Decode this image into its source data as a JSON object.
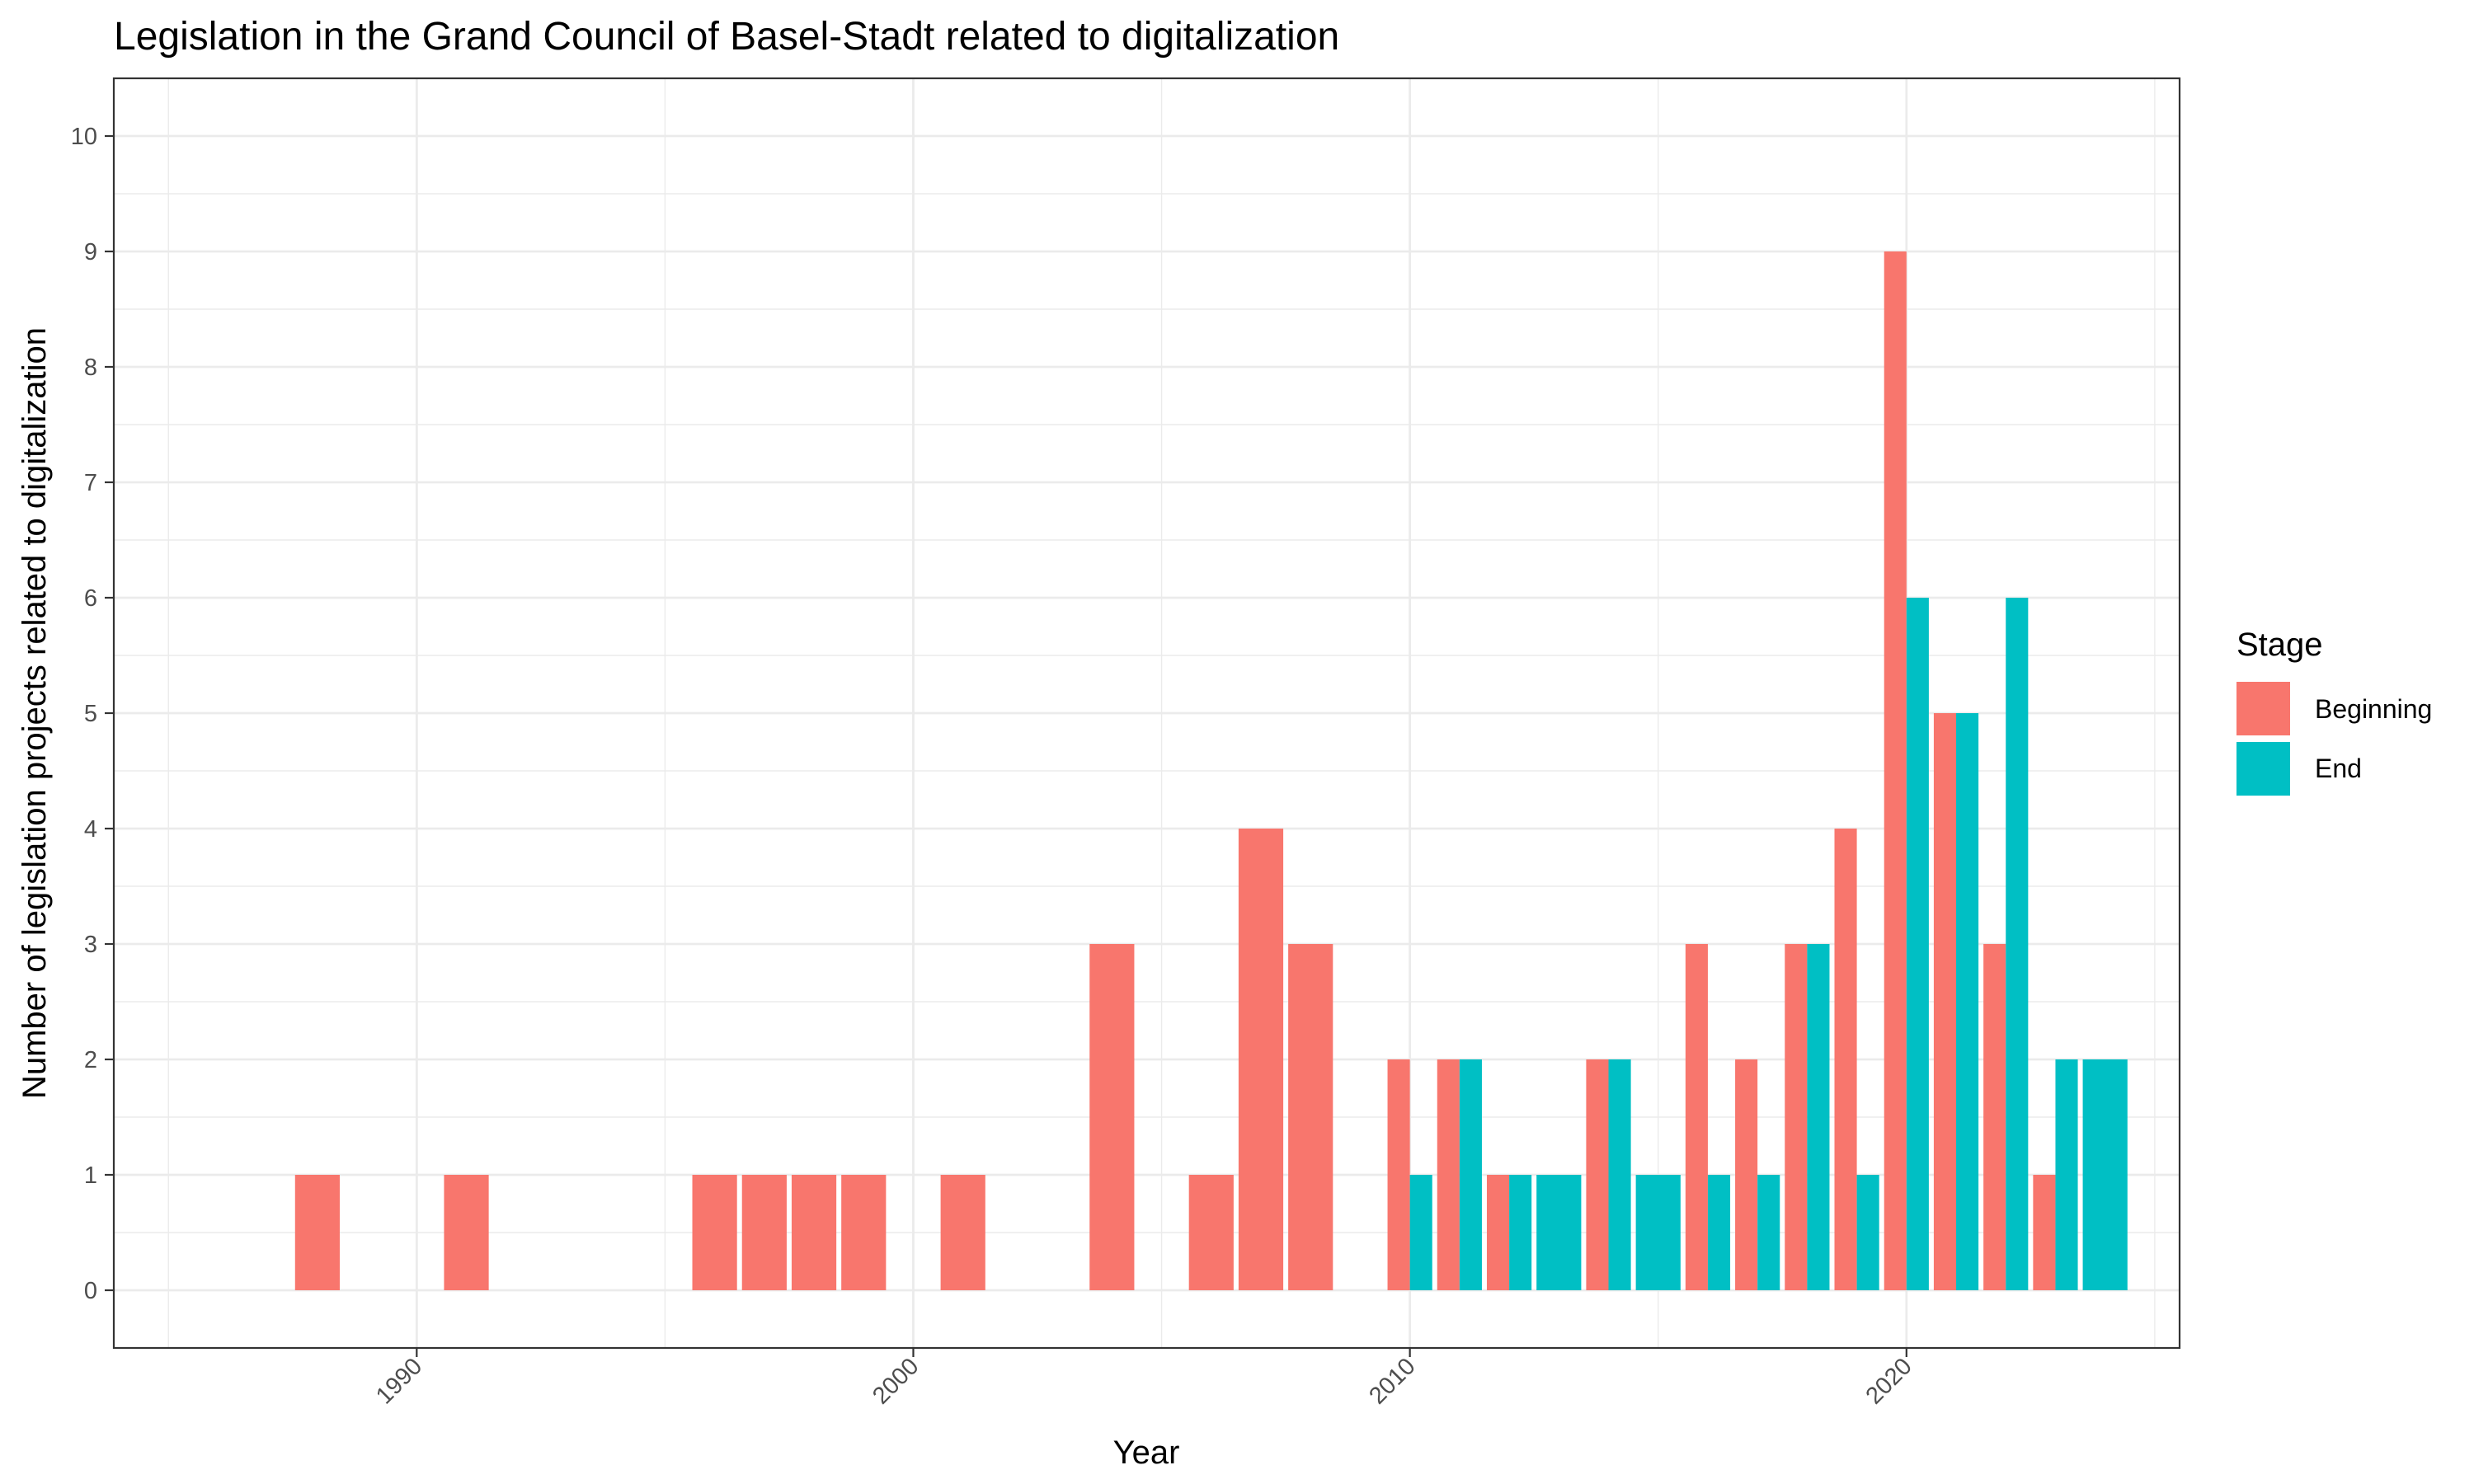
{
  "chart_data": {
    "type": "bar",
    "title": "Legislation in the Grand Council of Basel-Stadt related to digitalization",
    "xlabel": "Year",
    "ylabel": "Number of legislation projects related to digitalization",
    "xlim": [
      1983.9,
      2025.5
    ],
    "ylim": [
      -0.5,
      10.5
    ],
    "x_ticks": [
      1990,
      2000,
      2010,
      2020
    ],
    "y_ticks": [
      0,
      1,
      2,
      3,
      4,
      5,
      6,
      7,
      8,
      9,
      10
    ],
    "grid": true,
    "legend_position": "right",
    "legend": {
      "title": "Stage",
      "entries": [
        {
          "label": "Beginning",
          "color": "#F8766D"
        },
        {
          "label": "End",
          "color": "#00BFC4"
        }
      ]
    },
    "series": [
      {
        "name": "Beginning",
        "color": "#F8766D",
        "points": [
          {
            "x": 1988,
            "y": 1
          },
          {
            "x": 1991,
            "y": 1
          },
          {
            "x": 1996,
            "y": 1
          },
          {
            "x": 1997,
            "y": 1
          },
          {
            "x": 1998,
            "y": 1
          },
          {
            "x": 1999,
            "y": 1
          },
          {
            "x": 2001,
            "y": 1
          },
          {
            "x": 2004,
            "y": 3
          },
          {
            "x": 2006,
            "y": 1
          },
          {
            "x": 2007,
            "y": 4
          },
          {
            "x": 2008,
            "y": 3
          },
          {
            "x": 2010,
            "y": 2
          },
          {
            "x": 2011,
            "y": 2
          },
          {
            "x": 2012,
            "y": 1
          },
          {
            "x": 2014,
            "y": 2
          },
          {
            "x": 2016,
            "y": 3
          },
          {
            "x": 2017,
            "y": 2
          },
          {
            "x": 2018,
            "y": 3
          },
          {
            "x": 2019,
            "y": 4
          },
          {
            "x": 2020,
            "y": 9
          },
          {
            "x": 2021,
            "y": 5
          },
          {
            "x": 2022,
            "y": 3
          },
          {
            "x": 2023,
            "y": 1
          }
        ]
      },
      {
        "name": "End",
        "color": "#00BFC4",
        "points": [
          {
            "x": 2010,
            "y": 1
          },
          {
            "x": 2011,
            "y": 2
          },
          {
            "x": 2012,
            "y": 1
          },
          {
            "x": 2013,
            "y": 1
          },
          {
            "x": 2014,
            "y": 2
          },
          {
            "x": 2015,
            "y": 1
          },
          {
            "x": 2016,
            "y": 1
          },
          {
            "x": 2017,
            "y": 1
          },
          {
            "x": 2018,
            "y": 3
          },
          {
            "x": 2019,
            "y": 1
          },
          {
            "x": 2020,
            "y": 6
          },
          {
            "x": 2021,
            "y": 5
          },
          {
            "x": 2022,
            "y": 6
          },
          {
            "x": 2023,
            "y": 2
          },
          {
            "x": 2024,
            "y": 2
          }
        ]
      }
    ]
  }
}
